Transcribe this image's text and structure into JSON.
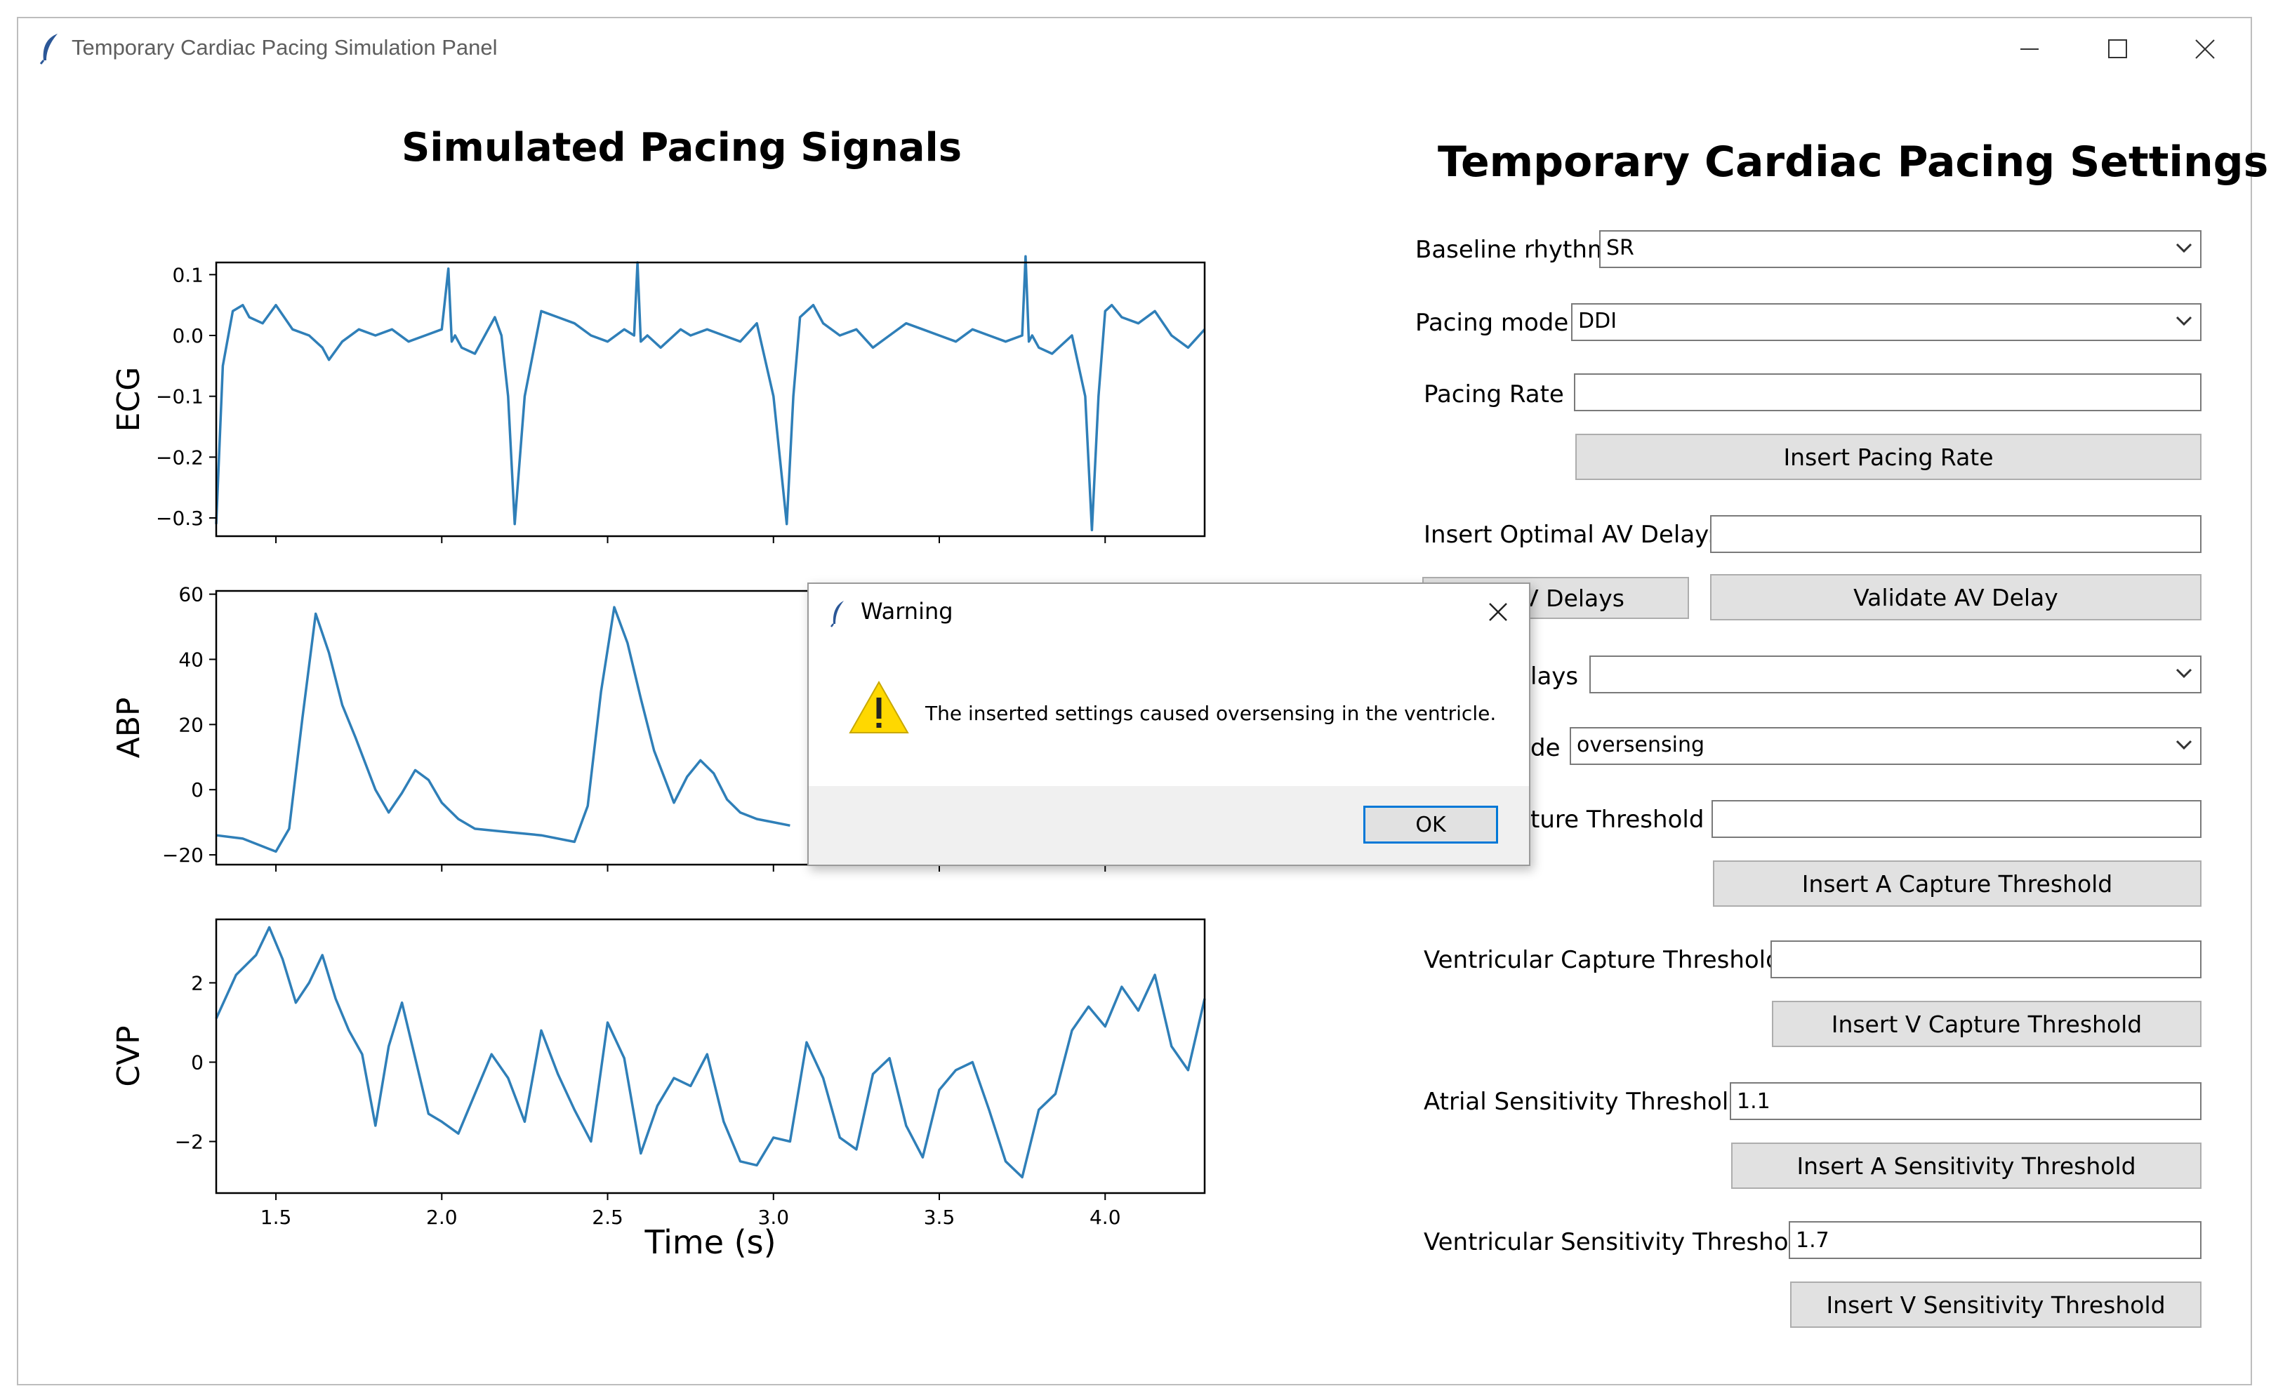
{
  "window": {
    "title": "Temporary Cardiac Pacing Simulation Panel"
  },
  "plots": {
    "title": "Simulated Pacing Signals",
    "xlabel": "Time (s)"
  },
  "chart_data": [
    {
      "type": "line",
      "ylabel": "ECG",
      "ylim": [
        -0.33,
        0.12
      ],
      "xlim": [
        1.32,
        4.3
      ],
      "yticks": [
        0.1,
        0.0,
        -0.1,
        -0.2,
        -0.3
      ],
      "ytick_labels": [
        "0.1",
        "0.0",
        "−0.1",
        "−0.2",
        "−0.3"
      ],
      "series": [
        {
          "x": [
            1.32,
            1.34,
            1.37,
            1.4,
            1.42,
            1.46,
            1.5,
            1.55,
            1.6,
            1.64,
            1.66,
            1.7,
            1.75,
            1.8,
            1.85,
            1.9,
            1.95,
            2.0,
            2.02,
            2.03,
            2.04,
            2.06,
            2.1,
            2.14,
            2.16,
            2.18,
            2.2,
            2.22,
            2.25,
            2.3,
            2.35,
            2.4,
            2.45,
            2.5,
            2.55,
            2.58,
            2.59,
            2.6,
            2.62,
            2.66,
            2.72,
            2.75,
            2.8,
            2.85,
            2.9,
            2.95,
            3.0,
            3.04,
            3.06,
            3.08,
            3.1,
            3.12,
            3.15,
            3.2,
            3.25,
            3.3,
            3.35,
            3.4,
            3.45,
            3.5,
            3.55,
            3.6,
            3.65,
            3.7,
            3.75,
            3.76,
            3.77,
            3.78,
            3.8,
            3.84,
            3.9,
            3.94,
            3.96,
            3.98,
            4.0,
            4.02,
            4.05,
            4.1,
            4.15,
            4.2,
            4.25,
            4.3
          ],
          "y": [
            -0.31,
            -0.05,
            0.04,
            0.05,
            0.03,
            0.02,
            0.05,
            0.01,
            0.0,
            -0.02,
            -0.04,
            -0.01,
            0.01,
            0.0,
            0.01,
            -0.01,
            0.0,
            0.01,
            0.11,
            -0.01,
            0.0,
            -0.02,
            -0.03,
            0.01,
            0.03,
            0.0,
            -0.1,
            -0.31,
            -0.1,
            0.04,
            0.03,
            0.02,
            0.0,
            -0.01,
            0.01,
            0.0,
            0.12,
            -0.01,
            0.0,
            -0.02,
            0.01,
            0.0,
            0.01,
            0.0,
            -0.01,
            0.02,
            -0.1,
            -0.31,
            -0.1,
            0.03,
            0.04,
            0.05,
            0.02,
            0.0,
            0.01,
            -0.02,
            0.0,
            0.02,
            0.01,
            0.0,
            -0.01,
            0.01,
            0.0,
            -0.01,
            0.0,
            0.13,
            -0.01,
            0.0,
            -0.02,
            -0.03,
            0.0,
            -0.1,
            -0.32,
            -0.1,
            0.04,
            0.05,
            0.03,
            0.02,
            0.04,
            0.0,
            -0.02,
            0.01
          ]
        }
      ]
    },
    {
      "type": "line",
      "ylabel": "ABP",
      "ylim": [
        -23,
        61
      ],
      "xlim": [
        1.32,
        4.3
      ],
      "yticks": [
        60,
        40,
        20,
        0,
        -20
      ],
      "ytick_labels": [
        "60",
        "40",
        "20",
        "0",
        "−20"
      ],
      "series": [
        {
          "x": [
            1.32,
            1.4,
            1.5,
            1.54,
            1.58,
            1.62,
            1.66,
            1.7,
            1.74,
            1.8,
            1.84,
            1.88,
            1.92,
            1.96,
            2.0,
            2.05,
            2.1,
            2.2,
            2.3,
            2.4,
            2.44,
            2.48,
            2.52,
            2.56,
            2.6,
            2.64,
            2.7,
            2.74,
            2.78,
            2.82,
            2.86,
            2.9,
            2.95,
            3.0,
            3.05
          ],
          "y": [
            -14,
            -15,
            -19,
            -12,
            22,
            54,
            42,
            26,
            16,
            0,
            -7,
            -1,
            6,
            3,
            -4,
            -9,
            -12,
            -13,
            -14,
            -16,
            -5,
            30,
            56,
            45,
            28,
            12,
            -4,
            4,
            9,
            5,
            -3,
            -7,
            -9,
            -10,
            -11
          ]
        }
      ]
    },
    {
      "type": "line",
      "ylabel": "CVP",
      "ylim": [
        -3.3,
        3.6
      ],
      "xlim": [
        1.32,
        4.3
      ],
      "yticks": [
        2,
        0,
        -2
      ],
      "ytick_labels": [
        "2",
        "0",
        "−2"
      ],
      "xticks": [
        1.5,
        2.0,
        2.5,
        3.0,
        3.5,
        4.0
      ],
      "xtick_labels": [
        "1.5",
        "2.0",
        "2.5",
        "3.0",
        "3.5",
        "4.0"
      ],
      "series": [
        {
          "x": [
            1.32,
            1.38,
            1.44,
            1.48,
            1.52,
            1.56,
            1.6,
            1.64,
            1.68,
            1.72,
            1.76,
            1.8,
            1.84,
            1.88,
            1.92,
            1.96,
            2.0,
            2.05,
            2.1,
            2.15,
            2.2,
            2.25,
            2.3,
            2.35,
            2.4,
            2.45,
            2.5,
            2.55,
            2.6,
            2.65,
            2.7,
            2.75,
            2.8,
            2.85,
            2.9,
            2.95,
            3.0,
            3.05,
            3.1,
            3.15,
            3.2,
            3.25,
            3.3,
            3.35,
            3.4,
            3.45,
            3.5,
            3.55,
            3.6,
            3.65,
            3.7,
            3.75,
            3.8,
            3.85,
            3.9,
            3.95,
            4.0,
            4.05,
            4.1,
            4.15,
            4.2,
            4.25,
            4.3
          ],
          "y": [
            1.1,
            2.2,
            2.7,
            3.4,
            2.6,
            1.5,
            2.0,
            2.7,
            1.6,
            0.8,
            0.2,
            -1.6,
            0.4,
            1.5,
            0.1,
            -1.3,
            -1.5,
            -1.8,
            -0.8,
            0.2,
            -0.4,
            -1.5,
            0.8,
            -0.3,
            -1.2,
            -2.0,
            1.0,
            0.1,
            -2.3,
            -1.1,
            -0.4,
            -0.6,
            0.2,
            -1.5,
            -2.5,
            -2.6,
            -1.9,
            -2.0,
            0.5,
            -0.4,
            -1.9,
            -2.2,
            -0.3,
            0.1,
            -1.6,
            -2.4,
            -0.7,
            -0.2,
            0.0,
            -1.2,
            -2.5,
            -2.9,
            -1.2,
            -0.8,
            0.8,
            1.4,
            0.9,
            1.9,
            1.3,
            2.2,
            0.4,
            -0.2,
            1.6
          ]
        }
      ]
    }
  ],
  "settings": {
    "title": "Temporary Cardiac Pacing Settings",
    "baseline_rhythm": {
      "label": "Baseline rhythm",
      "value": "SR"
    },
    "pacing_mode": {
      "label": "Pacing mode",
      "value": "DDI"
    },
    "pacing_rate": {
      "label": "Pacing Rate",
      "value": "",
      "button": "Insert Pacing Rate"
    },
    "optimal_av_delay": {
      "label": "Insert Optimal AV Delay:",
      "value": "",
      "button_left": "AV Delays",
      "button_right": "Validate AV Delay"
    },
    "delays": {
      "label": "lays",
      "value": ""
    },
    "mode": {
      "label": "de",
      "value": "oversensing"
    },
    "a_capture": {
      "label": "ture Threshold",
      "value": "",
      "button": "Insert A Capture Threshold"
    },
    "v_capture": {
      "label": "Ventricular Capture Threshold",
      "value": "",
      "button": "Insert V Capture Threshold"
    },
    "a_sensitivity": {
      "label": "Atrial Sensitivity Threshold",
      "value": "1.1",
      "button": "Insert A Sensitivity Threshold"
    },
    "v_sensitivity": {
      "label": "Ventricular Sensitivity Threshold",
      "value": "1.7",
      "button": "Insert V Sensitivity Threshold"
    }
  },
  "dialog": {
    "title": "Warning",
    "message": "The inserted settings caused oversensing in the ventricle.",
    "ok_label": "OK"
  },
  "colors": {
    "trace": "#2f7fb8",
    "button_bg": "#e1e1e1",
    "focus": "#0078d7",
    "warning": "#ffd800"
  }
}
